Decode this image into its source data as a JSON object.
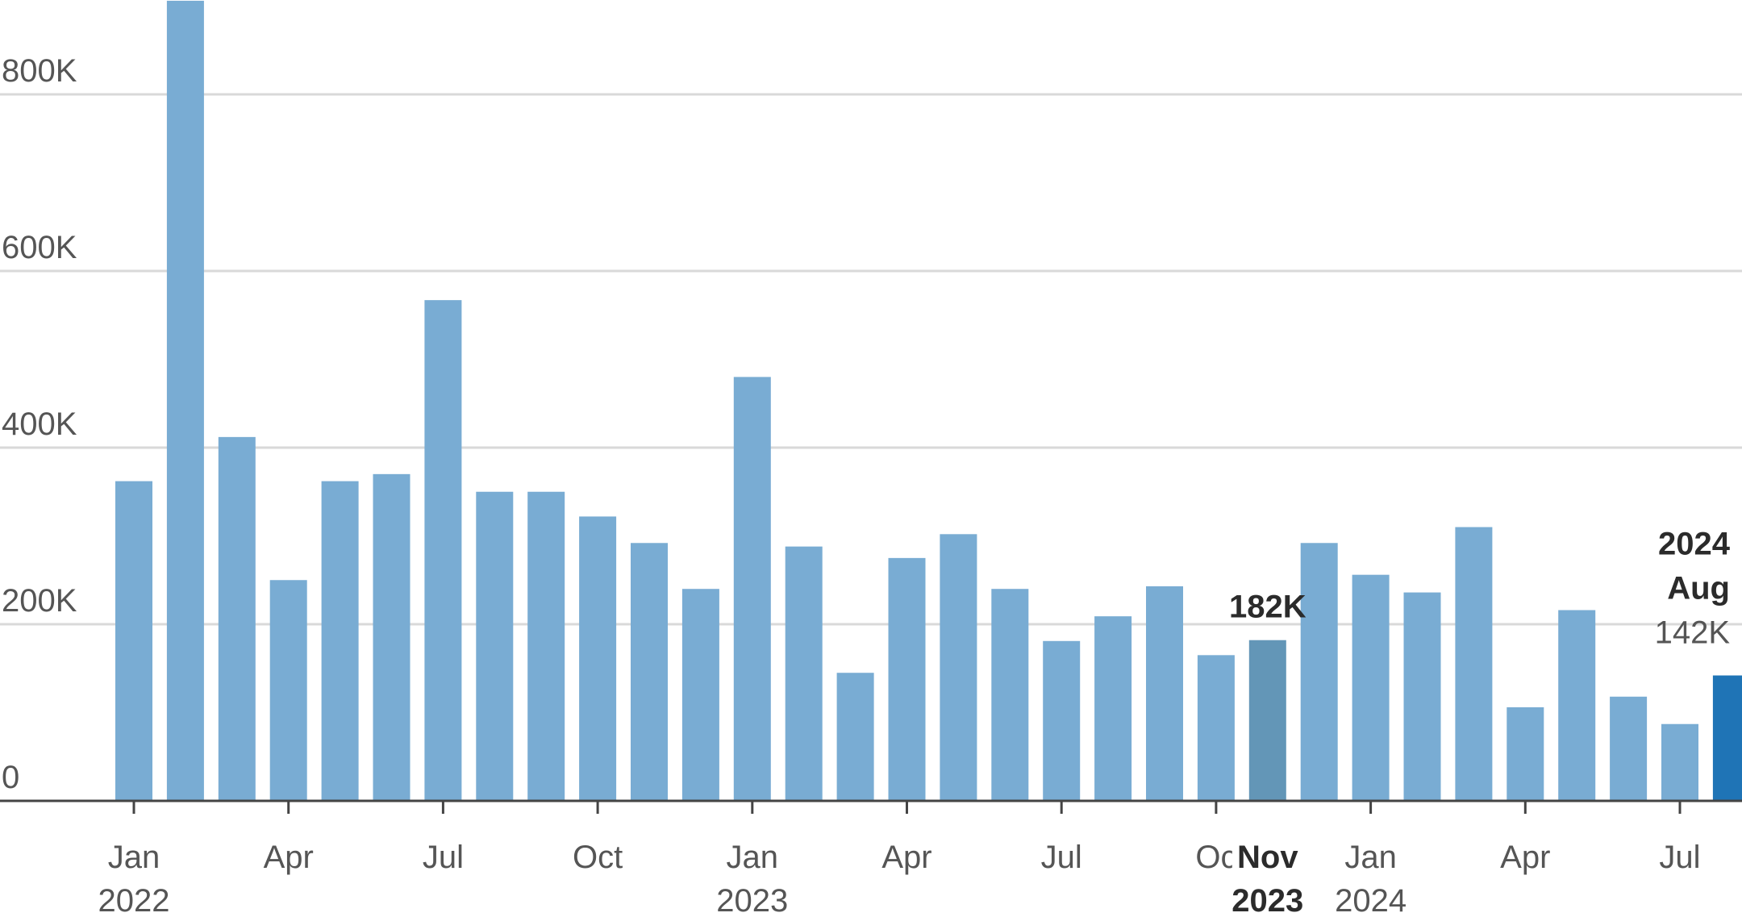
{
  "chart_data": {
    "type": "bar",
    "title": "",
    "xlabel": "",
    "ylabel": "",
    "ylim": [
      0,
      900000
    ],
    "grid": true,
    "y_ticks": [
      0,
      200000,
      400000,
      600000,
      800000
    ],
    "y_tick_labels": [
      "0",
      "200K",
      "400K",
      "600K",
      "800K"
    ],
    "categories": [
      "2022-01",
      "2022-02",
      "2022-03",
      "2022-04",
      "2022-05",
      "2022-06",
      "2022-07",
      "2022-08",
      "2022-09",
      "2022-10",
      "2022-11",
      "2022-12",
      "2023-01",
      "2023-02",
      "2023-03",
      "2023-04",
      "2023-05",
      "2023-06",
      "2023-07",
      "2023-08",
      "2023-09",
      "2023-10",
      "2023-11",
      "2023-12",
      "2024-01",
      "2024-02",
      "2024-03",
      "2024-04",
      "2024-05",
      "2024-06",
      "2024-07",
      "2024-08"
    ],
    "values": [
      362000,
      906000,
      412000,
      250000,
      362000,
      370000,
      567000,
      350000,
      350000,
      322000,
      292000,
      240000,
      480000,
      288000,
      145000,
      275000,
      302000,
      240000,
      181000,
      209000,
      243000,
      165000,
      182000,
      292000,
      256000,
      236000,
      310000,
      106000,
      216000,
      118000,
      87000,
      142000
    ],
    "x_tick_labels": [
      {
        "index": 0,
        "line1": "Jan",
        "line2": "2022"
      },
      {
        "index": 3,
        "line1": "Apr",
        "line2": ""
      },
      {
        "index": 6,
        "line1": "Jul",
        "line2": ""
      },
      {
        "index": 9,
        "line1": "Oct",
        "line2": ""
      },
      {
        "index": 12,
        "line1": "Jan",
        "line2": "2023"
      },
      {
        "index": 15,
        "line1": "Apr",
        "line2": ""
      },
      {
        "index": 18,
        "line1": "Jul",
        "line2": ""
      },
      {
        "index": 21,
        "line1": "Oc",
        "line2": ""
      },
      {
        "index": 24,
        "line1": "Jan",
        "line2": "2024"
      },
      {
        "index": 27,
        "line1": "Apr",
        "line2": ""
      },
      {
        "index": 30,
        "line1": "Jul",
        "line2": ""
      }
    ],
    "highlights": [
      {
        "index": 22,
        "month": "Nov",
        "year": "2023",
        "value_label": "182K",
        "color": "#6396b7"
      },
      {
        "index": 31,
        "month": "Aug",
        "year": "2024",
        "value_label": "142K",
        "color": "#1f74b6"
      }
    ],
    "colors": {
      "bar": "#79acd3",
      "grid": "#d9d9d9",
      "axis": "#444444"
    }
  }
}
